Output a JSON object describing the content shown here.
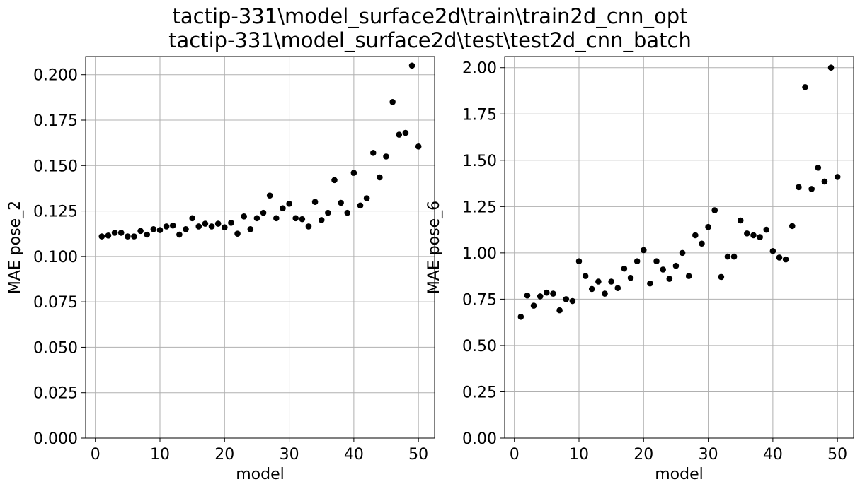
{
  "figure": {
    "title_line1": "tactip-331\\model_surface2d\\train\\train2d_cnn_opt",
    "title_line2": "tactip-331\\model_surface2d\\test\\test2d_cnn_batch"
  },
  "chart_data": [
    {
      "type": "scatter",
      "xlabel": "model",
      "ylabel": "MAE pose_2",
      "xlim": [
        -1.5,
        52.5
      ],
      "ylim": [
        0,
        0.21
      ],
      "xticks": [
        0,
        10,
        20,
        30,
        40,
        50
      ],
      "xtick_labels": [
        "0",
        "10",
        "20",
        "30",
        "40",
        "50"
      ],
      "yticks": [
        0,
        0.025,
        0.05,
        0.075,
        0.1,
        0.125,
        0.15,
        0.175,
        0.2
      ],
      "ytick_labels": [
        "0.000",
        "0.025",
        "0.050",
        "0.075",
        "0.100",
        "0.125",
        "0.150",
        "0.175",
        "0.200"
      ],
      "grid": true,
      "marker_color": "#000000",
      "x": [
        1,
        2,
        3,
        4,
        5,
        6,
        7,
        8,
        9,
        10,
        11,
        12,
        13,
        14,
        15,
        16,
        17,
        18,
        19,
        20,
        21,
        22,
        23,
        24,
        25,
        26,
        27,
        28,
        29,
        30,
        31,
        32,
        33,
        34,
        35,
        36,
        37,
        38,
        39,
        40,
        41,
        42,
        43,
        44,
        45,
        46,
        47,
        48,
        49,
        50
      ],
      "y": [
        0.111,
        0.1115,
        0.113,
        0.113,
        0.111,
        0.111,
        0.114,
        0.112,
        0.115,
        0.1145,
        0.1165,
        0.117,
        0.112,
        0.115,
        0.121,
        0.1165,
        0.118,
        0.1165,
        0.118,
        0.116,
        0.1185,
        0.1125,
        0.122,
        0.115,
        0.121,
        0.124,
        0.1335,
        0.121,
        0.1265,
        0.129,
        0.121,
        0.1205,
        0.1165,
        0.13,
        0.12,
        0.124,
        0.142,
        0.1295,
        0.124,
        0.146,
        0.128,
        0.132,
        0.157,
        0.1435,
        0.155,
        0.185,
        0.167,
        0.168,
        0.205,
        0.1605
      ]
    },
    {
      "type": "scatter",
      "xlabel": "model",
      "ylabel": "MAE pose_6",
      "xlim": [
        -1.5,
        52.5
      ],
      "ylim": [
        0,
        2.06
      ],
      "xticks": [
        0,
        10,
        20,
        30,
        40,
        50
      ],
      "xtick_labels": [
        "0",
        "10",
        "20",
        "30",
        "40",
        "50"
      ],
      "yticks": [
        0,
        0.25,
        0.5,
        0.75,
        1.0,
        1.25,
        1.5,
        1.75,
        2.0
      ],
      "ytick_labels": [
        "0.00",
        "0.25",
        "0.50",
        "0.75",
        "1.00",
        "1.25",
        "1.50",
        "1.75",
        "2.00"
      ],
      "grid": true,
      "marker_color": "#000000",
      "x": [
        1,
        2,
        3,
        4,
        5,
        6,
        7,
        8,
        9,
        10,
        11,
        12,
        13,
        14,
        15,
        16,
        17,
        18,
        19,
        20,
        21,
        22,
        23,
        24,
        25,
        26,
        27,
        28,
        29,
        30,
        31,
        32,
        33,
        34,
        35,
        36,
        37,
        38,
        39,
        40,
        41,
        42,
        43,
        44,
        45,
        46,
        47,
        48,
        49,
        50
      ],
      "y": [
        0.655,
        0.77,
        0.715,
        0.765,
        0.785,
        0.78,
        0.69,
        0.75,
        0.74,
        0.955,
        0.875,
        0.805,
        0.845,
        0.78,
        0.845,
        0.81,
        0.915,
        0.865,
        0.955,
        1.015,
        0.835,
        0.955,
        0.91,
        0.86,
        0.93,
        1.0,
        0.875,
        1.095,
        1.05,
        1.14,
        1.23,
        0.87,
        0.98,
        0.98,
        1.175,
        1.105,
        1.095,
        1.085,
        1.125,
        1.01,
        0.975,
        0.965,
        1.145,
        1.355,
        1.895,
        1.345,
        1.46,
        1.385,
        2.0,
        1.41
      ]
    }
  ]
}
